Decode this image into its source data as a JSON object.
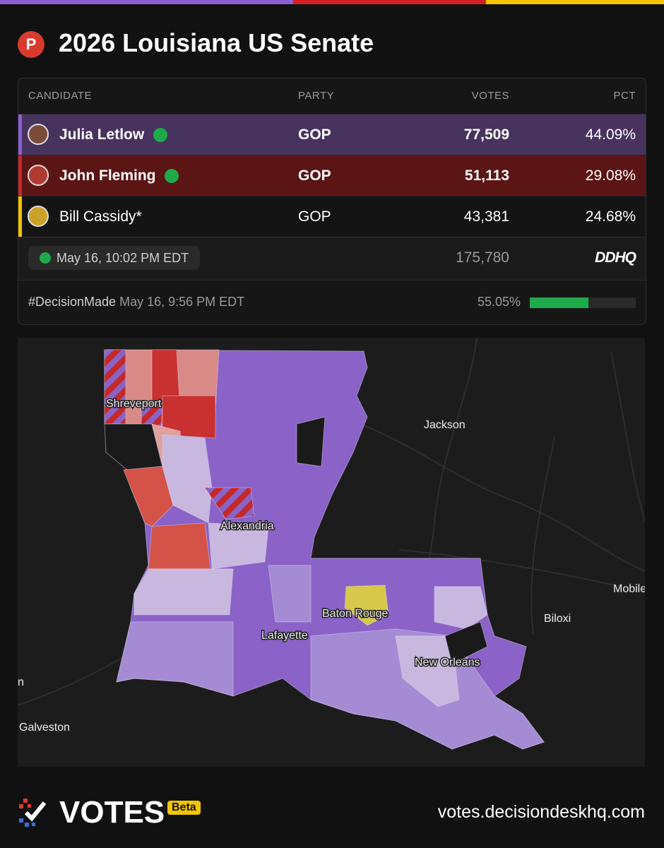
{
  "header": {
    "badge": "P",
    "title": "2026 Louisiana US Senate"
  },
  "table": {
    "columns": [
      "CANDIDATE",
      "PARTY",
      "VOTES",
      "PCT"
    ],
    "rows": [
      [
        "Julia Letlow",
        "GOP",
        "77,509",
        "44.09%"
      ],
      [
        "John Fleming",
        "GOP",
        "51,113",
        "29.08%"
      ],
      [
        "Bill Cassidy*",
        "GOP",
        "43,381",
        "24.68%"
      ]
    ]
  },
  "summary": {
    "updated": "May 16, 10:02 PM EDT",
    "total_votes": "175,780",
    "source": "DDHQ"
  },
  "decision": {
    "tag": "#DecisionMade",
    "time": "May 16, 9:56 PM EDT",
    "reporting": {
      "value": 55.05,
      "label": "55.05%"
    }
  },
  "map": {
    "labels": [
      "Shreveport",
      "Jackson",
      "Alexandria",
      "Baton Rouge",
      "Lafayette",
      "New Orleans",
      "Biloxi",
      "Mobile",
      "Galveston",
      "n"
    ]
  },
  "footer": {
    "brand": "VOTES",
    "badge": "Beta",
    "url": "votes.decisiondeskhq.com"
  }
}
